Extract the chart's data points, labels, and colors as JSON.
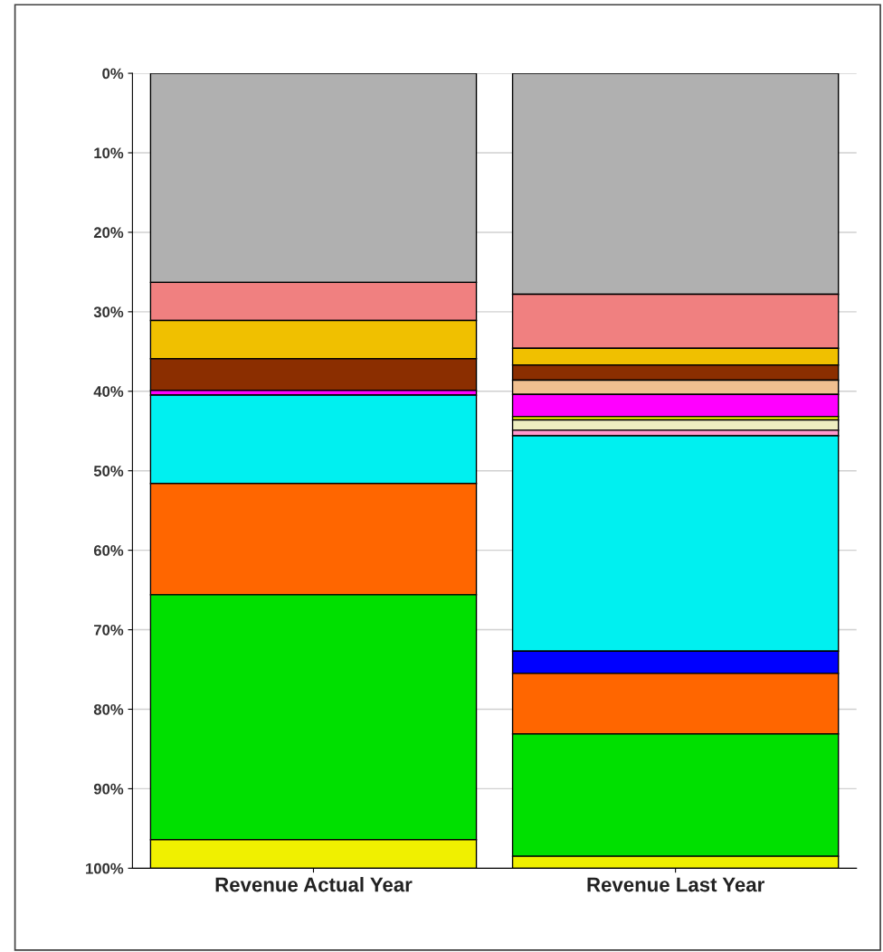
{
  "chart_data": {
    "type": "bar",
    "stacked": true,
    "categories": [
      "Revenue Actual Year",
      "Revenue Last Year"
    ],
    "series": [
      {
        "color": "#b0b0b0",
        "values": [
          26.3,
          27.8
        ]
      },
      {
        "color": "#f08080",
        "values": [
          4.8,
          6.8
        ]
      },
      {
        "color": "#f0c000",
        "values": [
          4.8,
          2.1
        ]
      },
      {
        "color": "#8b2e00",
        "values": [
          4.0,
          1.9
        ]
      },
      {
        "color": "#f0c090",
        "values": [
          0,
          1.8
        ]
      },
      {
        "color": "#ff00ff",
        "values": [
          0.6,
          2.8
        ]
      },
      {
        "color": "#ffff00",
        "values": [
          0,
          0.4
        ]
      },
      {
        "color": "#eeeec0",
        "values": [
          0,
          1.3
        ]
      },
      {
        "color": "#ff99cc",
        "values": [
          0,
          0.7
        ]
      },
      {
        "color": "#00f0f0",
        "values": [
          11.1,
          27.1
        ]
      },
      {
        "color": "#0000ff",
        "values": [
          0,
          2.8
        ]
      },
      {
        "color": "#ff6600",
        "values": [
          14.0,
          7.6
        ]
      },
      {
        "color": "#00e000",
        "values": [
          30.8,
          15.4
        ]
      },
      {
        "color": "#f0f000",
        "values": [
          3.6,
          1.5
        ]
      }
    ],
    "ylim": [
      100,
      0
    ],
    "yticks": [
      {
        "value": 0,
        "label": "0%"
      },
      {
        "value": 10,
        "label": "10%"
      },
      {
        "value": 20,
        "label": "20%"
      },
      {
        "value": 30,
        "label": "30%"
      },
      {
        "value": 40,
        "label": "40%"
      },
      {
        "value": 50,
        "label": "50%"
      },
      {
        "value": 60,
        "label": "60%"
      },
      {
        "value": 70,
        "label": "70%"
      },
      {
        "value": 80,
        "label": "80%"
      },
      {
        "value": 90,
        "label": "90%"
      },
      {
        "value": 100,
        "label": "100%"
      }
    ],
    "grid": "y"
  }
}
